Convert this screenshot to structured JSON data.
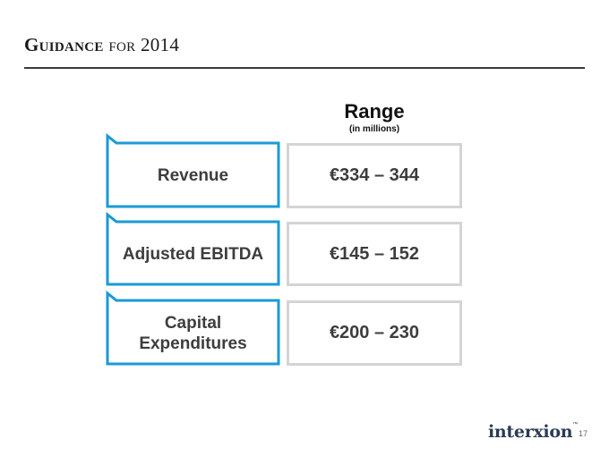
{
  "slide": {
    "title_big": "Guidance",
    "title_rest": "for 2014",
    "range_heading": "Range",
    "range_sub": "(in millions)",
    "rows": [
      {
        "label": "Revenue",
        "value": "€334 – 344"
      },
      {
        "label": "Adjusted EBITDA",
        "value": "€145 – 152"
      },
      {
        "label": "Capital\nExpenditures",
        "value": "€200 – 230"
      }
    ],
    "logo_text": "interxion",
    "trademark": "™",
    "page_number": "17"
  },
  "colors": {
    "accent_blue": "#1b9ad6",
    "value_border": "#d4d4d4",
    "text": "#3d3d3d"
  }
}
